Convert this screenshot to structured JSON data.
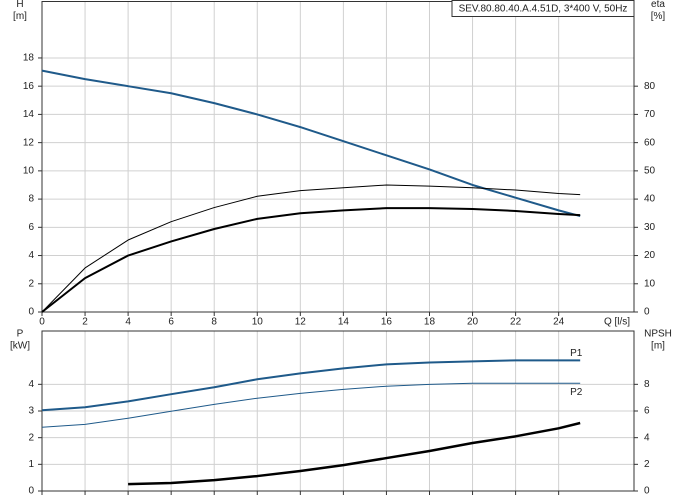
{
  "title": "SEV.80.80.40.A.4.51D, 3*400 V, 50Hz",
  "chart_data": [
    {
      "type": "line",
      "xlabel": "Q [l/s]",
      "ylabel": "H",
      "ylabel_unit": "[m]",
      "y2label": "eta",
      "y2label_unit": "[%]",
      "x": [
        0,
        2,
        4,
        6,
        8,
        10,
        12,
        14,
        16,
        18,
        20,
        22,
        24,
        25
      ],
      "xlim": [
        0,
        27.5
      ],
      "xticks": [
        0,
        2,
        4,
        6,
        8,
        10,
        12,
        14,
        16,
        18,
        20,
        22,
        24
      ],
      "ylim": [
        0,
        22
      ],
      "yticks": [
        0,
        2,
        4,
        6,
        8,
        10,
        12,
        14,
        16,
        18
      ],
      "y2lim": [
        0,
        110
      ],
      "y2ticks": [
        0,
        10,
        20,
        30,
        40,
        50,
        60,
        70,
        80
      ],
      "grid": true,
      "show_xtick_labels": true,
      "series": [
        {
          "color": "#1f5a8a",
          "line_width": 2,
          "values": [
            17.1,
            16.5,
            16.0,
            15.5,
            14.8,
            14.0,
            13.1,
            12.1,
            11.1,
            10.1,
            9.0,
            8.1,
            7.2,
            6.8
          ]
        },
        {
          "color": "#000000",
          "line_width": 1,
          "axis": "y2",
          "values": [
            0,
            15.6,
            25.5,
            32,
            37,
            41,
            43,
            44,
            45,
            44.6,
            44,
            43.2,
            42,
            41.6
          ]
        },
        {
          "color": "#000000",
          "line_width": 2,
          "axis": "y2",
          "values": [
            0,
            12,
            20,
            25,
            29.4,
            33,
            35,
            36,
            36.8,
            36.8,
            36.5,
            35.8,
            34.7,
            34.3
          ]
        }
      ]
    },
    {
      "type": "line",
      "ylabel": "P",
      "ylabel_unit": "[kW]",
      "y2label": "NPSH",
      "y2label_unit": "[m]",
      "x": [
        0,
        2,
        4,
        6,
        8,
        10,
        12,
        14,
        16,
        18,
        20,
        22,
        24,
        25
      ],
      "xlim": [
        0,
        27.5
      ],
      "xticks": [
        0,
        2,
        4,
        6,
        8,
        10,
        12,
        14,
        16,
        18,
        20,
        22,
        24
      ],
      "ylim": [
        0,
        6
      ],
      "yticks": [
        0,
        1,
        2,
        3,
        4
      ],
      "y2lim": [
        0,
        12
      ],
      "y2ticks": [
        0,
        2,
        4,
        6,
        8
      ],
      "grid": true,
      "show_xtick_labels": false,
      "series": [
        {
          "name": "P1",
          "color": "#1f5a8a",
          "line_width": 2,
          "values": [
            3.03,
            3.14,
            3.36,
            3.63,
            3.89,
            4.19,
            4.41,
            4.6,
            4.75,
            4.82,
            4.86,
            4.9,
            4.9,
            4.9
          ]
        },
        {
          "name": "P2",
          "color": "#1f5a8a",
          "line_width": 1,
          "values": [
            2.39,
            2.5,
            2.73,
            2.99,
            3.25,
            3.48,
            3.66,
            3.81,
            3.93,
            4.0,
            4.04,
            4.04,
            4.04,
            4.04
          ]
        },
        {
          "color": "#000000",
          "line_width": 2.5,
          "axis": "y2",
          "values": [
            null,
            null,
            0.52,
            0.6,
            0.82,
            1.12,
            1.5,
            1.94,
            2.47,
            3.0,
            3.6,
            4.1,
            4.7,
            5.1
          ]
        }
      ]
    }
  ]
}
